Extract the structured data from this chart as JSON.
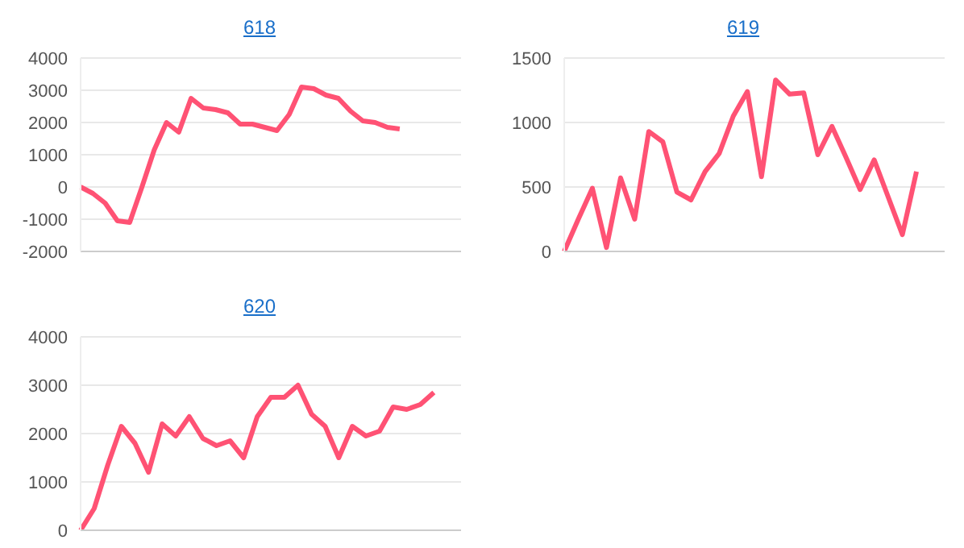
{
  "chart_data": [
    {
      "type": "line",
      "title": "618",
      "categories": [
        null,
        null,
        null,
        null,
        null,
        null,
        null,
        null,
        null,
        null,
        null,
        null,
        null,
        null,
        null,
        null,
        null,
        null,
        null,
        null,
        null,
        null,
        null,
        null,
        null,
        null,
        null,
        null,
        null,
        null,
        null,
        null
      ],
      "color": "#ff5274",
      "ylim": [
        -2000,
        4000
      ],
      "yticks": [
        -2000,
        -1000,
        0,
        1000,
        2000,
        3000,
        4000
      ],
      "grid": "y",
      "values": [
        0,
        -200,
        -500,
        -1050,
        -1100,
        0,
        1150,
        2000,
        1700,
        2750,
        2450,
        2400,
        2300,
        1950,
        1950,
        1850,
        1750,
        2250,
        3100,
        3050,
        2850,
        2750,
        2350,
        2050,
        2000,
        1850,
        1800,
        null,
        null,
        null,
        null,
        null
      ]
    },
    {
      "type": "line",
      "title": "619",
      "categories": [
        null,
        null,
        null,
        null,
        null,
        null,
        null,
        null,
        null,
        null,
        null,
        null,
        null,
        null,
        null,
        null,
        null,
        null,
        null,
        null,
        null,
        null,
        null,
        null,
        null,
        null,
        null,
        null
      ],
      "color": "#ff5274",
      "ylim": [
        0,
        1500
      ],
      "yticks": [
        0,
        500,
        1000,
        1500
      ],
      "grid": "y",
      "values": [
        0,
        250,
        490,
        30,
        570,
        250,
        930,
        850,
        460,
        400,
        620,
        760,
        1050,
        1240,
        580,
        1330,
        1220,
        1230,
        750,
        970,
        730,
        480,
        710,
        420,
        130,
        620,
        null,
        null
      ]
    },
    {
      "type": "line",
      "title": "620",
      "categories": [
        null,
        null,
        null,
        null,
        null,
        null,
        null,
        null,
        null,
        null,
        null,
        null,
        null,
        null,
        null,
        null,
        null,
        null,
        null,
        null,
        null,
        null,
        null,
        null,
        null,
        null,
        null,
        null,
        null
      ],
      "color": "#ff5274",
      "ylim": [
        0,
        4000
      ],
      "yticks": [
        0,
        1000,
        2000,
        3000,
        4000
      ],
      "grid": "y",
      "values": [
        0,
        450,
        1350,
        2150,
        1800,
        1200,
        2200,
        1950,
        2350,
        1900,
        1750,
        1850,
        1500,
        2350,
        2750,
        2750,
        3000,
        2400,
        2150,
        1500,
        2150,
        1950,
        2050,
        2550,
        2500,
        2600,
        2850,
        null,
        null
      ]
    }
  ]
}
